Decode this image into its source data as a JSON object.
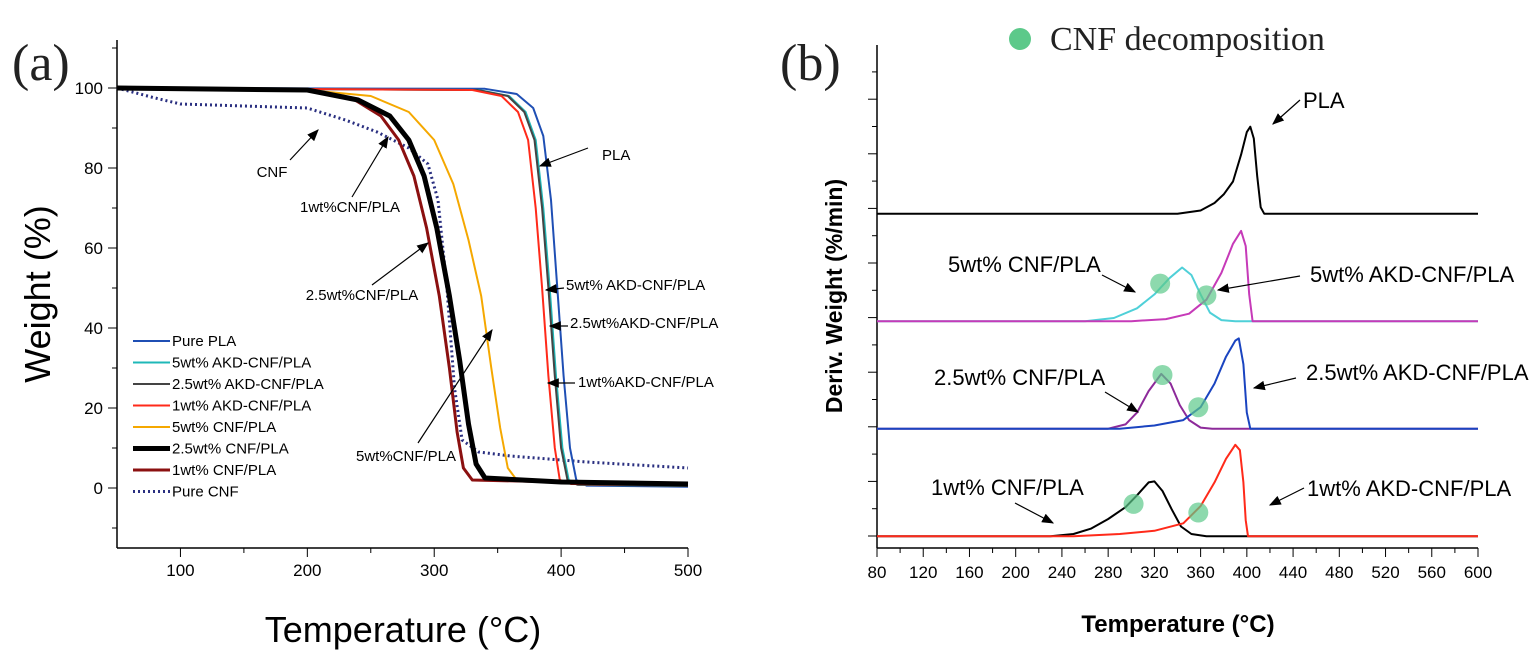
{
  "chart_data": [
    {
      "type": "line",
      "panel_label": "(a)",
      "title": "",
      "xlabel": "Temperature (°C)",
      "ylabel": "Weight (%)",
      "xlim": [
        50,
        500
      ],
      "ylim": [
        -15,
        112
      ],
      "xticks": [
        100,
        200,
        300,
        400,
        500
      ],
      "yticks": [
        0,
        20,
        40,
        60,
        80,
        100
      ],
      "legend_position": "lower-left",
      "series": [
        {
          "name": "Pure PLA",
          "color": "#1f4fb4",
          "width": 2,
          "points": [
            [
              50,
              100
            ],
            [
              340,
              99.8
            ],
            [
              365,
              98.5
            ],
            [
              378,
              95
            ],
            [
              386,
              88
            ],
            [
              392,
              72
            ],
            [
              397,
              50
            ],
            [
              402,
              28
            ],
            [
              407,
              10
            ],
            [
              412,
              2
            ],
            [
              420,
              0.6
            ],
            [
              500,
              0.3
            ]
          ]
        },
        {
          "name": "5wt% AKD-CNF/PLA",
          "color": "#1fb8b8",
          "width": 2,
          "points": [
            [
              50,
              100
            ],
            [
              335,
              99.5
            ],
            [
              359,
              98
            ],
            [
              372,
              94
            ],
            [
              380,
              87
            ],
            [
              386,
              70
            ],
            [
              391,
              50
            ],
            [
              396,
              28
            ],
            [
              401,
              10
            ],
            [
              406,
              2
            ],
            [
              414,
              0.8
            ],
            [
              500,
              0.5
            ]
          ]
        },
        {
          "name": "2.5wt% AKD-CNF/PLA",
          "color": "#444444",
          "width": 2,
          "points": [
            [
              50,
              100
            ],
            [
              334,
              99.5
            ],
            [
              358,
              98
            ],
            [
              371,
              94
            ],
            [
              379,
              87
            ],
            [
              385,
              70
            ],
            [
              390,
              50
            ],
            [
              395,
              28
            ],
            [
              400,
              10
            ],
            [
              405,
              2
            ],
            [
              413,
              0.8
            ],
            [
              500,
              0.5
            ]
          ]
        },
        {
          "name": "1wt% AKD-CNF/PLA",
          "color": "#ff2a1a",
          "width": 2,
          "points": [
            [
              50,
              100
            ],
            [
              330,
              99.5
            ],
            [
              353,
              98
            ],
            [
              366,
              94
            ],
            [
              374,
              87
            ],
            [
              380,
              70
            ],
            [
              385,
              50
            ],
            [
              390,
              28
            ],
            [
              395,
              10
            ],
            [
              399,
              2
            ],
            [
              408,
              1
            ],
            [
              500,
              0.8
            ]
          ]
        },
        {
          "name": "5wt% CNF/PLA",
          "color": "#f5a800",
          "width": 2,
          "points": [
            [
              50,
              100
            ],
            [
              200,
              99.5
            ],
            [
              250,
              98
            ],
            [
              280,
              94
            ],
            [
              300,
              87
            ],
            [
              315,
              76
            ],
            [
              327,
              62
            ],
            [
              337,
              48
            ],
            [
              345,
              30
            ],
            [
              352,
              15
            ],
            [
              358,
              5
            ],
            [
              365,
              2
            ],
            [
              400,
              1.5
            ],
            [
              500,
              1
            ]
          ]
        },
        {
          "name": "2.5wt% CNF/PLA",
          "color": "#000000",
          "width": 5,
          "points": [
            [
              50,
              100
            ],
            [
              200,
              99.5
            ],
            [
              240,
              97
            ],
            [
              265,
              93
            ],
            [
              280,
              87
            ],
            [
              292,
              78
            ],
            [
              302,
              65
            ],
            [
              312,
              48
            ],
            [
              320,
              32
            ],
            [
              327,
              16
            ],
            [
              333,
              6
            ],
            [
              340,
              2.5
            ],
            [
              400,
              1.5
            ],
            [
              500,
              1
            ]
          ]
        },
        {
          "name": "1wt% CNF/PLA",
          "color": "#8b1010",
          "width": 3,
          "points": [
            [
              50,
              100
            ],
            [
              200,
              99.5
            ],
            [
              235,
              97.5
            ],
            [
              258,
              93
            ],
            [
              272,
              87
            ],
            [
              284,
              78
            ],
            [
              294,
              65
            ],
            [
              304,
              48
            ],
            [
              312,
              30
            ],
            [
              318,
              14
            ],
            [
              323,
              5
            ],
            [
              330,
              2
            ],
            [
              400,
              1.5
            ],
            [
              500,
              1.2
            ]
          ]
        },
        {
          "name": "Pure CNF",
          "color": "#2a2f80",
          "width": 3,
          "dash": true,
          "points": [
            [
              50,
              100
            ],
            [
              80,
              97.5
            ],
            [
              100,
              96
            ],
            [
              200,
              95
            ],
            [
              230,
              92
            ],
            [
              255,
              89
            ],
            [
              280,
              85
            ],
            [
              295,
              81
            ],
            [
              303,
              72
            ],
            [
              310,
              50
            ],
            [
              316,
              25
            ],
            [
              322,
              12
            ],
            [
              335,
              9
            ],
            [
              360,
              8
            ],
            [
              420,
              6.5
            ],
            [
              500,
              5
            ]
          ]
        }
      ],
      "annotations": [
        {
          "text": "CNF"
        },
        {
          "text": "1wt%CNF/PLA"
        },
        {
          "text": "2.5wt%CNF/PLA"
        },
        {
          "text": "5wt%CNF/PLA"
        },
        {
          "text": "PLA"
        },
        {
          "text": "5wt% AKD-CNF/PLA"
        },
        {
          "text": "2.5wt%AKD-CNF/PLA"
        },
        {
          "text": "1wt%AKD-CNF/PLA"
        }
      ]
    },
    {
      "type": "line",
      "panel_label": "(b)",
      "title": "",
      "xlabel": "Temperature (°C)",
      "ylabel": "Deriv. Weight (%/min)",
      "xlim": [
        80,
        600
      ],
      "ylim": [
        -0.11,
        4.57
      ],
      "xticks": [
        80,
        120,
        160,
        200,
        240,
        280,
        320,
        360,
        400,
        440,
        480,
        520,
        560,
        600
      ],
      "legend": "CNF decomposition",
      "legend_color": "#5cc98a",
      "legend_position": "top",
      "series": [
        {
          "name": "PLA",
          "color": "#000000",
          "offset": 3,
          "points": [
            [
              80,
              0
            ],
            [
              340,
              0
            ],
            [
              360,
              0.03
            ],
            [
              372,
              0.1
            ],
            [
              380,
              0.18
            ],
            [
              388,
              0.3
            ],
            [
              395,
              0.55
            ],
            [
              400,
              0.76
            ],
            [
              403,
              0.81
            ],
            [
              406,
              0.7
            ],
            [
              409,
              0.35
            ],
            [
              412,
              0.06
            ],
            [
              415,
              0
            ],
            [
              600,
              0
            ]
          ]
        },
        {
          "name": "5wt% CNF/PLA",
          "color": "#4fd0d8",
          "offset": 2,
          "points": [
            [
              80,
              0
            ],
            [
              260,
              0
            ],
            [
              285,
              0.03
            ],
            [
              305,
              0.12
            ],
            [
              320,
              0.25
            ],
            [
              333,
              0.4
            ],
            [
              344,
              0.5
            ],
            [
              352,
              0.43
            ],
            [
              360,
              0.25
            ],
            [
              368,
              0.08
            ],
            [
              378,
              0.01
            ],
            [
              390,
              0
            ],
            [
              600,
              0
            ]
          ]
        },
        {
          "name": "5wt% AKD-CNF/PLA",
          "color": "#c63ab8",
          "offset": 2,
          "points": [
            [
              80,
              0
            ],
            [
              300,
              0
            ],
            [
              330,
              0.02
            ],
            [
              350,
              0.07
            ],
            [
              365,
              0.2
            ],
            [
              378,
              0.45
            ],
            [
              388,
              0.72
            ],
            [
              395,
              0.84
            ],
            [
              399,
              0.7
            ],
            [
              402,
              0.25
            ],
            [
              405,
              0
            ],
            [
              600,
              0
            ]
          ]
        },
        {
          "name": "2.5wt% CNF/PLA",
          "color": "#8d2a9a",
          "offset": 1,
          "points": [
            [
              80,
              0
            ],
            [
              280,
              0
            ],
            [
              295,
              0.04
            ],
            [
              305,
              0.15
            ],
            [
              315,
              0.35
            ],
            [
              326,
              0.51
            ],
            [
              334,
              0.42
            ],
            [
              342,
              0.22
            ],
            [
              350,
              0.08
            ],
            [
              360,
              0.01
            ],
            [
              370,
              0
            ],
            [
              600,
              0
            ]
          ]
        },
        {
          "name": "2.5wt% AKD-CNF/PLA",
          "color": "#1a44c0",
          "offset": 1,
          "points": [
            [
              80,
              0
            ],
            [
              290,
              0
            ],
            [
              320,
              0.03
            ],
            [
              345,
              0.08
            ],
            [
              360,
              0.2
            ],
            [
              372,
              0.42
            ],
            [
              382,
              0.67
            ],
            [
              390,
              0.82
            ],
            [
              393,
              0.84
            ],
            [
              397,
              0.6
            ],
            [
              400,
              0.15
            ],
            [
              403,
              0
            ],
            [
              600,
              0
            ]
          ]
        },
        {
          "name": "1wt% CNF/PLA",
          "color": "#000000",
          "offset": 0,
          "points": [
            [
              80,
              0
            ],
            [
              230,
              0
            ],
            [
              250,
              0.02
            ],
            [
              265,
              0.07
            ],
            [
              280,
              0.16
            ],
            [
              295,
              0.27
            ],
            [
              305,
              0.38
            ],
            [
              315,
              0.5
            ],
            [
              320,
              0.51
            ],
            [
              327,
              0.42
            ],
            [
              335,
              0.25
            ],
            [
              343,
              0.09
            ],
            [
              352,
              0.02
            ],
            [
              365,
              0
            ],
            [
              600,
              0
            ]
          ]
        },
        {
          "name": "1wt% AKD-CNF/PLA",
          "color": "#ff2a1a",
          "offset": 0,
          "points": [
            [
              80,
              0
            ],
            [
              250,
              0
            ],
            [
              290,
              0.02
            ],
            [
              320,
              0.05
            ],
            [
              345,
              0.12
            ],
            [
              360,
              0.28
            ],
            [
              372,
              0.5
            ],
            [
              382,
              0.72
            ],
            [
              390,
              0.85
            ],
            [
              394,
              0.8
            ],
            [
              397,
              0.5
            ],
            [
              399,
              0.15
            ],
            [
              401,
              0
            ],
            [
              600,
              0
            ]
          ]
        }
      ],
      "decomposition_markers": [
        [
          302,
          0.3,
          0
        ],
        [
          358,
          0.22,
          0
        ],
        [
          327,
          0.5,
          1
        ],
        [
          358,
          0.2,
          1
        ],
        [
          325,
          0.35,
          2
        ],
        [
          365,
          0.24,
          2
        ]
      ],
      "annotations": [
        {
          "text": "PLA"
        },
        {
          "text": "5wt% CNF/PLA"
        },
        {
          "text": "5wt% AKD-CNF/PLA"
        },
        {
          "text": "2.5wt% CNF/PLA"
        },
        {
          "text": "2.5wt% AKD-CNF/PLA"
        },
        {
          "text": "1wt% CNF/PLA"
        },
        {
          "text": "1wt% AKD-CNF/PLA"
        }
      ]
    }
  ]
}
